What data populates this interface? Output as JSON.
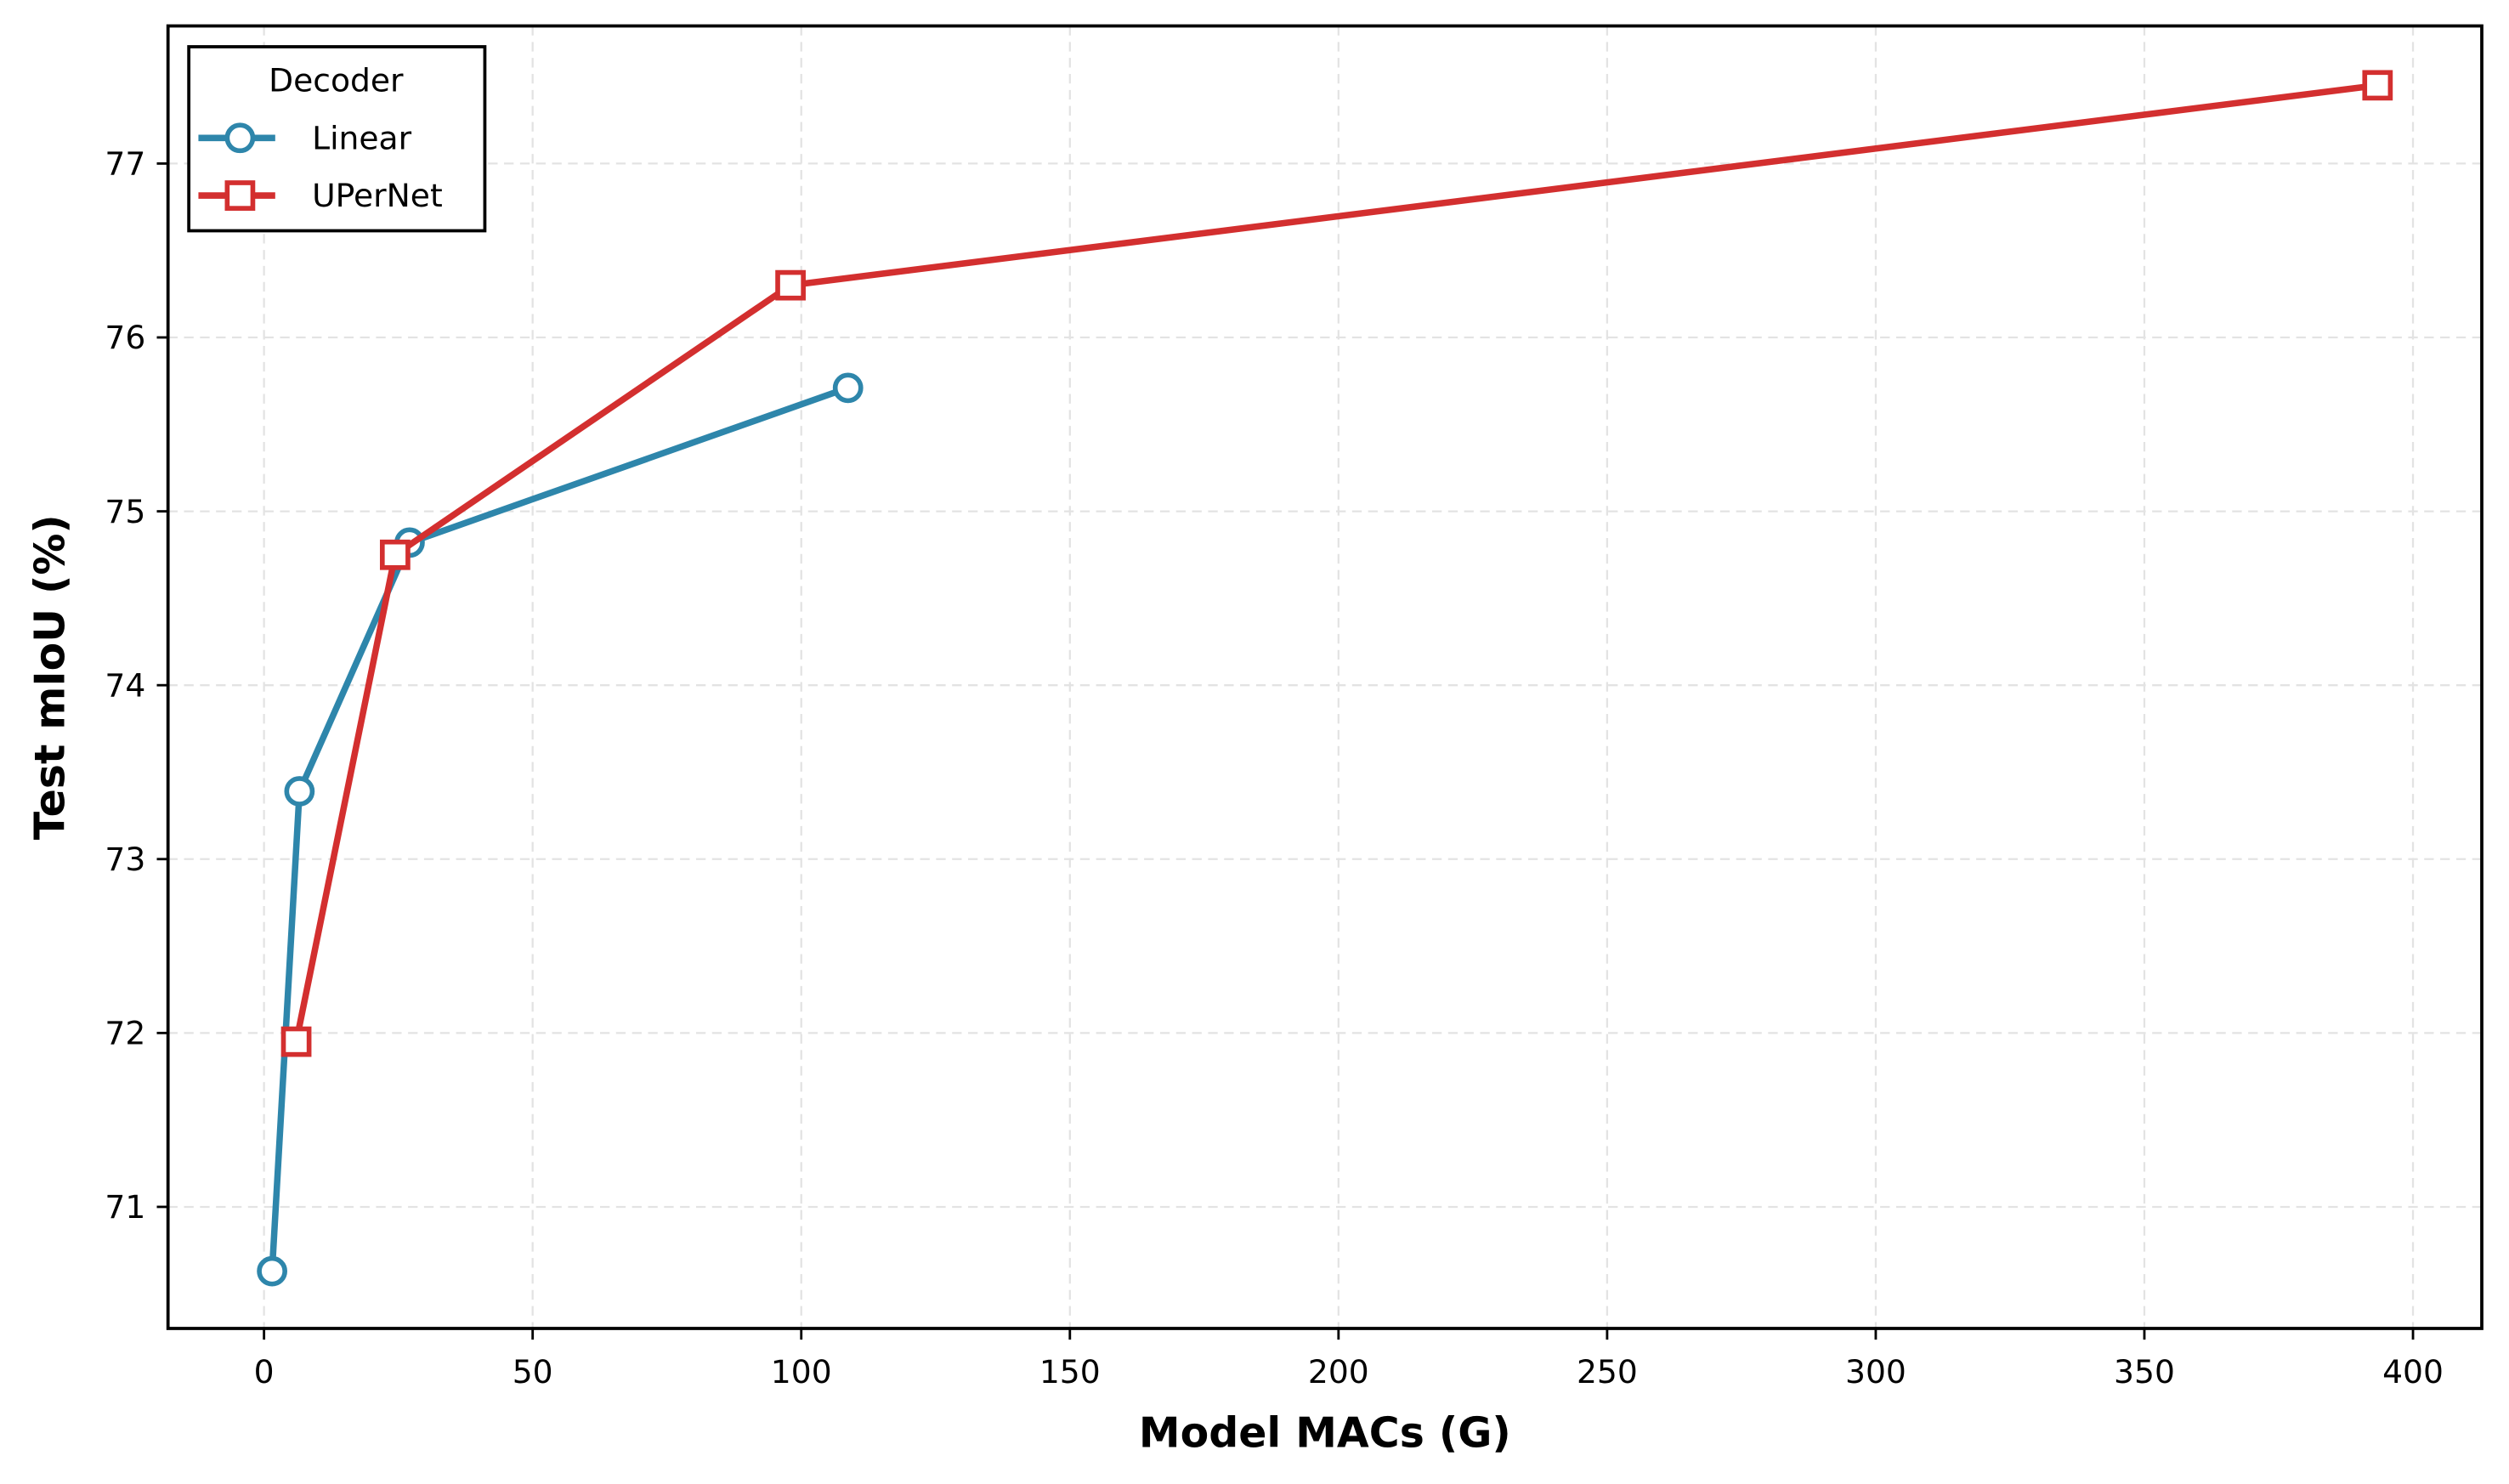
{
  "chart_data": {
    "type": "line",
    "title": "",
    "xlabel": "Model MACs (G)",
    "ylabel": "Test mIoU (%)",
    "xlim": [
      -18,
      412
    ],
    "ylim": [
      70.3,
      77.8
    ],
    "xticks": [
      0,
      50,
      100,
      150,
      200,
      250,
      300,
      350,
      400
    ],
    "yticks": [
      71,
      72,
      73,
      74,
      75,
      76,
      77
    ],
    "grid": true,
    "legend": {
      "title": "Decoder",
      "placement": "top-left"
    },
    "series": [
      {
        "name": "Linear",
        "color": "#2e86ab",
        "marker": "circle",
        "x": [
          1.5,
          6.6,
          27.1,
          108.7
        ],
        "y": [
          70.63,
          73.39,
          74.82,
          75.71
        ]
      },
      {
        "name": "UPerNet",
        "color": "#d32f2f",
        "marker": "square",
        "x": [
          6.0,
          24.4,
          98.0,
          393.4
        ],
        "y": [
          71.95,
          74.75,
          76.3,
          77.45
        ]
      }
    ]
  }
}
